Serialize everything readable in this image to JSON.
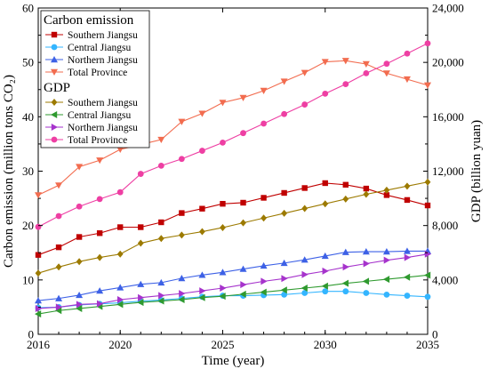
{
  "chart_data": {
    "type": "line",
    "xlabel": "Time (year)",
    "ylabel_left": "Carbon emission (million tons CO₂)",
    "ylabel_right": "GDP (billion yuan)",
    "x": [
      2016,
      2017,
      2018,
      2019,
      2020,
      2021,
      2022,
      2023,
      2024,
      2025,
      2026,
      2027,
      2028,
      2029,
      2030,
      2031,
      2032,
      2033,
      2034,
      2035
    ],
    "xlim": [
      2016,
      2035
    ],
    "ylim_left": [
      0,
      60
    ],
    "ylim_right": [
      0,
      24000
    ],
    "xticks": [
      "2016",
      "2020",
      "2025",
      "2030",
      "2035"
    ],
    "yticks_left": [
      "0",
      "10",
      "20",
      "30",
      "40",
      "50",
      "60"
    ],
    "yticks_right": [
      "0",
      "4,000",
      "8,000",
      "12,000",
      "16,000",
      "20,000",
      "24,000"
    ],
    "legend_placement": "top-left",
    "grid": false,
    "legend_groups": [
      {
        "title": "Carbon emission",
        "axis": "left",
        "series_idx": [
          0,
          1,
          2,
          3
        ]
      },
      {
        "title": "GDP",
        "axis": "right",
        "series_idx": [
          4,
          5,
          6,
          7
        ]
      }
    ],
    "series": [
      {
        "name": "Southern Jiangsu",
        "axis": "left",
        "color": "#c00000",
        "marker": "square",
        "values": [
          14.6,
          16.0,
          17.9,
          18.6,
          19.7,
          19.7,
          20.6,
          22.3,
          23.1,
          24.0,
          24.2,
          25.1,
          26.0,
          26.9,
          27.8,
          27.5,
          26.8,
          25.6,
          24.7,
          23.7
        ]
      },
      {
        "name": "Central Jiangsu",
        "axis": "left",
        "color": "#33b5ff",
        "marker": "circle",
        "values": [
          4.9,
          5.0,
          5.4,
          5.6,
          5.8,
          6.1,
          6.3,
          6.6,
          6.9,
          7.1,
          7.1,
          7.2,
          7.3,
          7.6,
          7.9,
          7.9,
          7.6,
          7.3,
          7.1,
          6.9
        ]
      },
      {
        "name": "Northern Jiangsu",
        "axis": "left",
        "color": "#3d61e6",
        "marker": "triangle-up",
        "values": [
          6.2,
          6.6,
          7.2,
          8.0,
          8.6,
          9.2,
          9.5,
          10.3,
          10.9,
          11.4,
          12.0,
          12.6,
          13.1,
          13.7,
          14.4,
          15.1,
          15.2,
          15.2,
          15.3,
          15.3
        ]
      },
      {
        "name": "Total Province",
        "axis": "left",
        "color": "#f26c4f",
        "marker": "triangle-down",
        "values": [
          25.6,
          27.4,
          30.8,
          32.0,
          34.0,
          34.9,
          35.8,
          39.1,
          40.6,
          42.6,
          43.5,
          44.8,
          46.5,
          48.1,
          50.1,
          50.3,
          49.7,
          48.0,
          46.9,
          45.8
        ]
      },
      {
        "name": "Southern Jiangsu",
        "axis": "right",
        "color": "#9c7a00",
        "marker": "diamond",
        "values": [
          4500,
          4950,
          5350,
          5650,
          5900,
          6700,
          7050,
          7300,
          7550,
          7850,
          8200,
          8550,
          8900,
          9250,
          9600,
          9950,
          10300,
          10600,
          10900,
          11200
        ]
      },
      {
        "name": "Central Jiangsu",
        "axis": "right",
        "color": "#2f9a2f",
        "marker": "triangle-left",
        "values": [
          1500,
          1750,
          1900,
          2050,
          2200,
          2350,
          2450,
          2550,
          2700,
          2800,
          2950,
          3100,
          3250,
          3400,
          3550,
          3750,
          3900,
          4050,
          4200,
          4350
        ]
      },
      {
        "name": "Northern Jiangsu",
        "axis": "right",
        "color": "#a633cc",
        "marker": "triangle-right",
        "values": [
          1900,
          2000,
          2200,
          2250,
          2550,
          2700,
          2850,
          3000,
          3200,
          3400,
          3650,
          3900,
          4100,
          4400,
          4650,
          4950,
          5200,
          5450,
          5650,
          5900
        ]
      },
      {
        "name": "Total Province",
        "axis": "right",
        "color": "#ee3fa3",
        "marker": "circle",
        "values": [
          7900,
          8700,
          9400,
          9950,
          10450,
          11800,
          12400,
          12900,
          13500,
          14100,
          14800,
          15500,
          16200,
          16900,
          17700,
          18400,
          19200,
          19900,
          20650,
          21400
        ]
      }
    ]
  }
}
